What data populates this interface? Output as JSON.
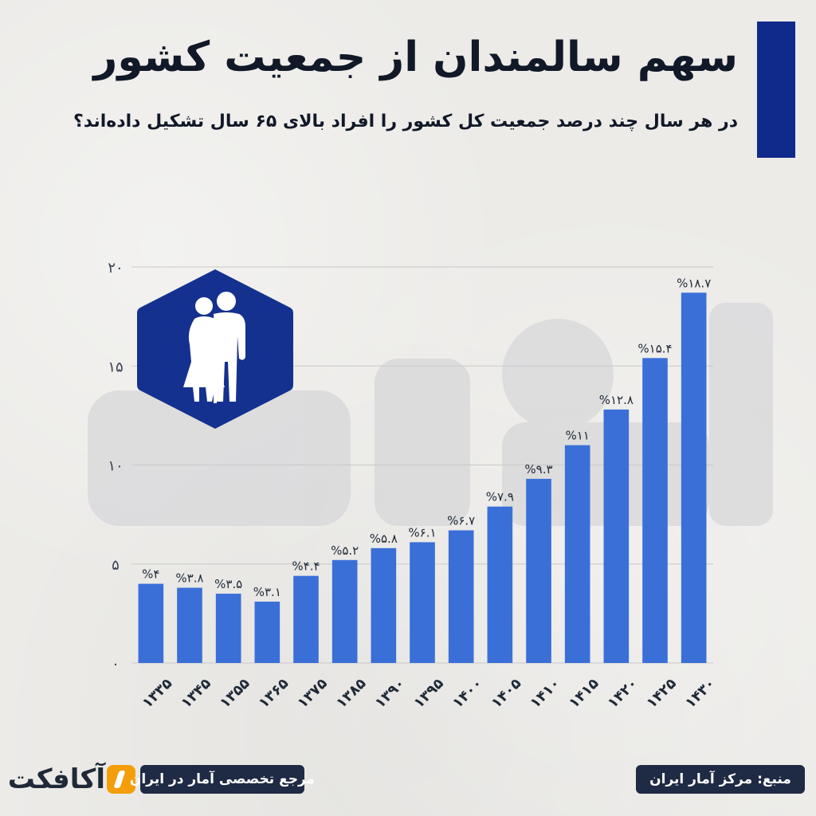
{
  "header": {
    "title": "سهم سالمندان از جمعیت کشور",
    "subtitle": "در هر سال چند درصد جمعیت کل کشور را افراد بالای ۶۵ سال تشکیل داده‌اند؟"
  },
  "footer": {
    "brand": "آکافکت",
    "tagline": "مرجع تخصصی آمار در ایران",
    "source": "منبع: مرکز آمار ایران"
  },
  "colors": {
    "accent": "#0f2a8a",
    "bar": "#3b6fd8",
    "pill": "#1f2a44",
    "icon_bg": "#15318f",
    "logo_mark": "#f59e0b"
  },
  "icons": {
    "elderly_couple": "elderly-couple-icon"
  },
  "chart_data": {
    "type": "bar",
    "categories": [
      "۱۳۳۵",
      "۱۳۴۵",
      "۱۳۵۵",
      "۱۳۶۵",
      "۱۳۷۵",
      "۱۳۸۵",
      "۱۳۹۰",
      "۱۳۹۵",
      "۱۴۰۰",
      "۱۴۰۵",
      "۱۴۱۰",
      "۱۴۱۵",
      "۱۴۲۰",
      "۱۴۲۵",
      "۱۴۳۰"
    ],
    "values": [
      4,
      3.8,
      3.5,
      3.1,
      4.4,
      5.2,
      5.8,
      6.1,
      6.7,
      7.9,
      9.3,
      11,
      12.8,
      15.4,
      18.7
    ],
    "value_labels": [
      "%۴",
      "%۳.۸",
      "%۳.۵",
      "%۳.۱",
      "%۴.۴",
      "%۵.۲",
      "%۵.۸",
      "%۶.۱",
      "%۶.۷",
      "%۷.۹",
      "%۹.۳",
      "%۱۱",
      "%۱۲.۸",
      "%۱۵.۴",
      "%۱۸.۷"
    ],
    "y_ticks": [
      0,
      5,
      10,
      15,
      20
    ],
    "y_tick_labels": [
      "۰",
      "۵",
      "۱۰",
      "۱۵",
      "۲۰"
    ],
    "ylim": [
      0,
      20
    ],
    "grid": true,
    "title": "",
    "xlabel": "",
    "ylabel": ""
  }
}
